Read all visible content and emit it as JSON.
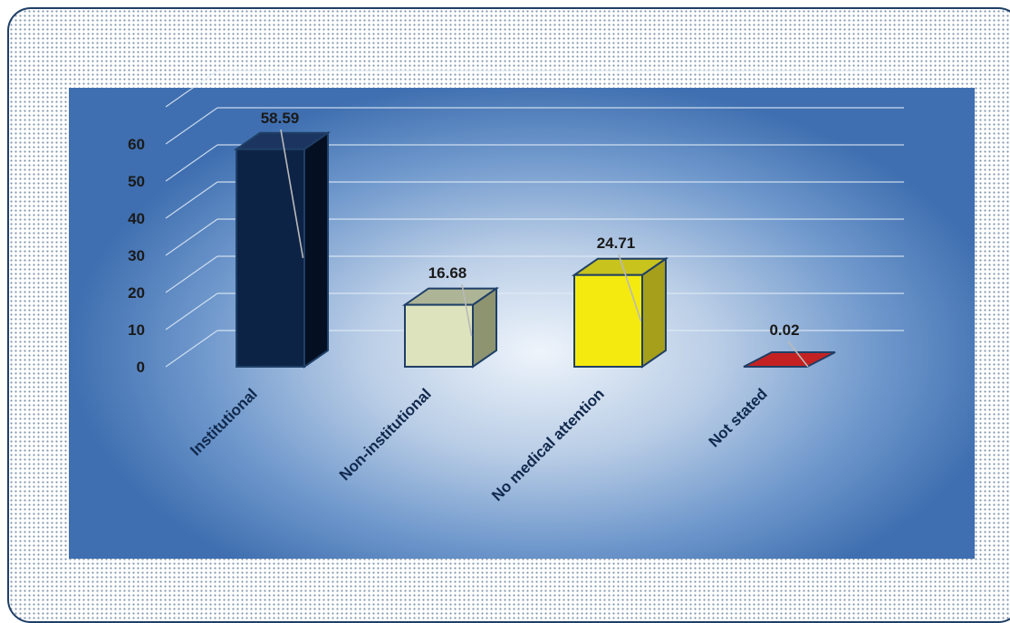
{
  "chart_data": {
    "type": "bar",
    "style": "3d-column",
    "categories": [
      "Institutional",
      "Non-institutional",
      "No medical attention",
      "Not stated"
    ],
    "values": [
      58.59,
      16.68,
      24.71,
      0.02
    ],
    "value_labels": [
      "58.59",
      "16.68",
      "24.71",
      "0.02"
    ],
    "y_ticks": [
      "0",
      "10",
      "20",
      "30",
      "40",
      "50",
      "60"
    ],
    "ylim": [
      0,
      60
    ],
    "grid": true,
    "legend": false,
    "colors": {
      "front": [
        "#0d2346",
        "#dde3bc",
        "#f4ea10",
        "#c42222"
      ],
      "side": [
        "#050f22",
        "#8e9470",
        "#a59f1b",
        "#801616"
      ],
      "top": [
        "#1b3560",
        "#aeb596",
        "#c9c31d",
        "#a41d1d"
      ],
      "outline": "#1f3f66",
      "plot_center": "#eef4fb",
      "plot_edge": "#3f6fb0"
    }
  }
}
